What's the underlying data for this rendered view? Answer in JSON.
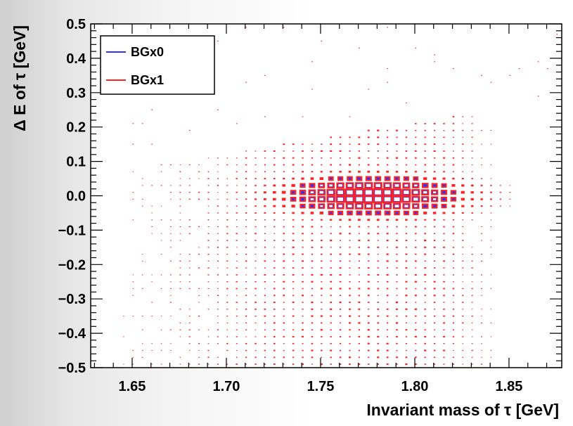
{
  "chart_data": {
    "type": "heatmap",
    "title": "",
    "xlabel": "Invariant mass of τ [GeV]",
    "ylabel": "Δ E of τ [GeV]",
    "xlim": [
      1.628,
      1.878
    ],
    "ylim": [
      -0.5,
      0.5
    ],
    "x_ticks": [
      "1.65",
      "1.70",
      "1.75",
      "1.80",
      "1.85"
    ],
    "x_tick_values": [
      1.65,
      1.7,
      1.75,
      1.8,
      1.85
    ],
    "y_ticks": [
      "0.5",
      "0.4",
      "0.3",
      "0.2",
      "0.1",
      "0.0",
      "−0.1",
      "−0.2",
      "−0.3",
      "−0.4",
      "−0.5"
    ],
    "y_tick_values": [
      0.5,
      0.4,
      0.3,
      0.2,
      0.1,
      0.0,
      -0.1,
      -0.2,
      -0.3,
      -0.4,
      -0.5
    ],
    "legend_position": "top-left",
    "grid": false,
    "bin_width_x": 0.005,
    "bin_width_y": 0.02,
    "peak": {
      "x": 1.777,
      "y": 0.0
    },
    "series": [
      {
        "name": "BGx0",
        "color": "#3333ee",
        "peak_size": 0.85,
        "sigma_x": 0.022,
        "sigma_y": 0.028,
        "tail_level": 0.16
      },
      {
        "name": "BGx1",
        "color": "#ff2222",
        "peak_size": 0.95,
        "sigma_x": 0.026,
        "sigma_y": 0.032,
        "tail_level": 0.24
      }
    ]
  },
  "colors": {
    "frame": "#000000",
    "legend_bg": "#ffffff"
  }
}
